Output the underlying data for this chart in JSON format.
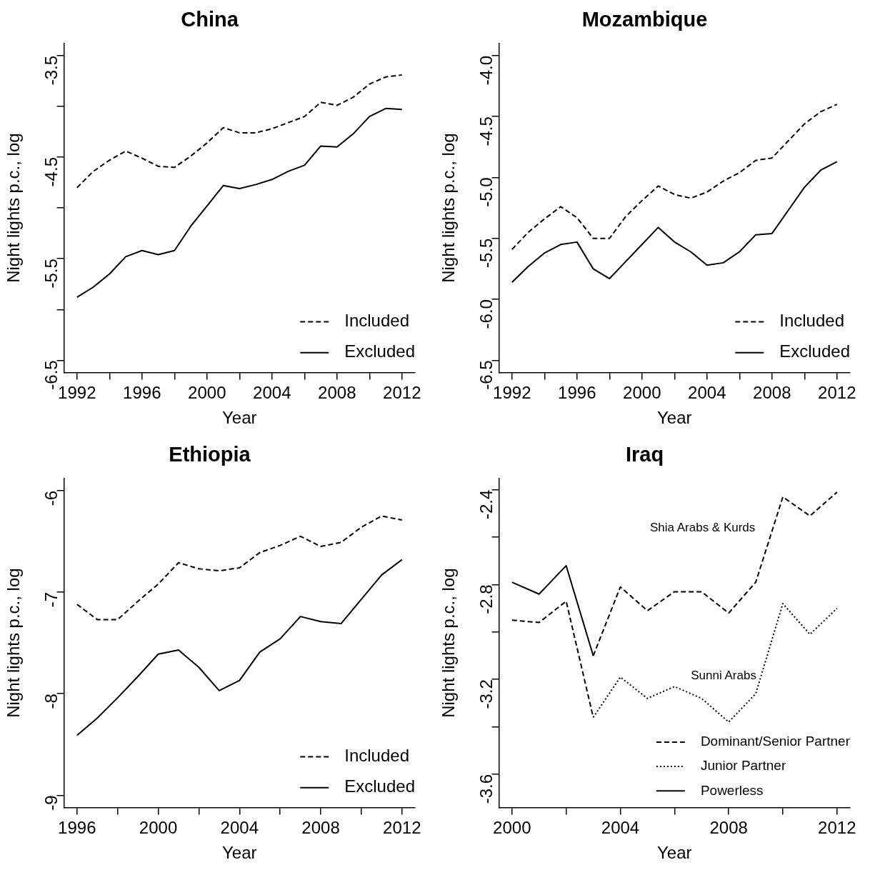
{
  "chart_data": [
    {
      "type": "line",
      "title": "China",
      "xlabel": "Year",
      "ylabel": "Night lights p.c., log",
      "grid": false,
      "legend": "bottom right",
      "x": [
        1992,
        1993,
        1994,
        1995,
        1996,
        1997,
        1998,
        1999,
        2000,
        2001,
        2002,
        2003,
        2004,
        2005,
        2006,
        2007,
        2008,
        2009,
        2010,
        2011,
        2012
      ],
      "xlim": [
        1991.2,
        2012.8
      ],
      "xticks": [
        1992,
        {
          "value": 1994,
          "label": null
        },
        1996,
        {
          "value": 1998,
          "label": null
        },
        2000,
        {
          "value": 2002,
          "label": null
        },
        2004,
        {
          "value": 2006,
          "label": null
        },
        2008,
        {
          "value": 2010,
          "label": null
        },
        2012
      ],
      "ylim": [
        -6.62,
        -3.38
      ],
      "yticks": [
        -6.5,
        {
          "value": -6,
          "label": null
        },
        -5.5,
        {
          "value": -5,
          "label": null
        },
        -4.5,
        {
          "value": -4,
          "label": null
        },
        -3.5
      ],
      "series": [
        {
          "name": "Included",
          "color": "#000000",
          "line_style": "dashed",
          "values": [
            -4.8,
            -4.64,
            -4.53,
            -4.44,
            -4.51,
            -4.59,
            -4.6,
            -4.49,
            -4.36,
            -4.21,
            -4.26,
            -4.26,
            -4.22,
            -4.16,
            -4.1,
            -3.96,
            -3.99,
            -3.91,
            -3.78,
            -3.71,
            -3.69
          ]
        },
        {
          "name": "Excluded",
          "color": "#000000",
          "line_style": "solid",
          "values": [
            -5.88,
            -5.78,
            -5.65,
            -5.48,
            -5.42,
            -5.46,
            -5.42,
            -5.18,
            -4.98,
            -4.78,
            -4.81,
            -4.77,
            -4.72,
            -4.64,
            -4.58,
            -4.39,
            -4.4,
            -4.27,
            -4.1,
            -4.02,
            -4.03
          ]
        }
      ]
    },
    {
      "type": "line",
      "title": "Mozambique",
      "xlabel": "Year",
      "ylabel": "Night lights p.c., log",
      "grid": false,
      "legend": "bottom right",
      "x": [
        1992,
        1993,
        1994,
        1995,
        1996,
        1997,
        1998,
        1999,
        2000,
        2001,
        2002,
        2003,
        2004,
        2005,
        2006,
        2007,
        2008,
        2009,
        2010,
        2011,
        2012
      ],
      "xlim": [
        1991.2,
        2012.8
      ],
      "xticks": [
        1992,
        {
          "value": 1994,
          "label": null
        },
        1996,
        {
          "value": 1998,
          "label": null
        },
        2000,
        {
          "value": 2002,
          "label": null
        },
        2004,
        {
          "value": 2006,
          "label": null
        },
        2008,
        {
          "value": 2010,
          "label": null
        },
        2012
      ],
      "ylim": [
        -6.6,
        -3.9
      ],
      "yticks": [
        -6.5,
        {
          "value": -6,
          "label": "-6.0"
        },
        -5.5,
        {
          "value": -5,
          "label": "-5.0"
        },
        -4.5,
        {
          "value": -4,
          "label": "-4.0"
        }
      ],
      "series": [
        {
          "name": "Included",
          "color": "#000000",
          "line_style": "dashed",
          "values": [
            -5.59,
            -5.45,
            -5.34,
            -5.24,
            -5.33,
            -5.5,
            -5.5,
            -5.32,
            -5.19,
            -5.07,
            -5.14,
            -5.17,
            -5.12,
            -5.03,
            -4.96,
            -4.86,
            -4.84,
            -4.7,
            -4.56,
            -4.46,
            -4.4
          ]
        },
        {
          "name": "Excluded",
          "color": "#000000",
          "line_style": "solid",
          "values": [
            -5.86,
            -5.73,
            -5.62,
            -5.55,
            -5.53,
            -5.75,
            -5.83,
            -5.69,
            -5.55,
            -5.41,
            -5.53,
            -5.61,
            -5.72,
            -5.7,
            -5.61,
            -5.47,
            -5.46,
            -5.27,
            -5.08,
            -4.94,
            -4.87
          ]
        }
      ]
    },
    {
      "type": "line",
      "title": "Ethiopia",
      "xlabel": "Year",
      "ylabel": "Night lights p.c., log",
      "grid": false,
      "legend": "bottom right",
      "x": [
        1996,
        1997,
        1998,
        1999,
        2000,
        2001,
        2002,
        2003,
        2004,
        2005,
        2006,
        2007,
        2008,
        2009,
        2010,
        2011,
        2012
      ],
      "xlim": [
        1995.36,
        2012.64
      ],
      "xticks": [
        1996,
        {
          "value": 1998,
          "label": null
        },
        2000,
        {
          "value": 2002,
          "label": null
        },
        2004,
        {
          "value": 2006,
          "label": null
        },
        2008,
        {
          "value": 2010,
          "label": null
        },
        2012
      ],
      "ylim": [
        -9.12,
        -5.88
      ],
      "yticks": [
        -9,
        -8,
        -7,
        -6
      ],
      "series": [
        {
          "name": "Included",
          "color": "#000000",
          "line_style": "dashed",
          "values": [
            -7.12,
            -7.27,
            -7.27,
            -7.09,
            -6.92,
            -6.71,
            -6.77,
            -6.79,
            -6.76,
            -6.61,
            -6.54,
            -6.45,
            -6.55,
            -6.51,
            -6.36,
            -6.25,
            -6.29
          ]
        },
        {
          "name": "Excluded",
          "color": "#000000",
          "line_style": "solid",
          "values": [
            -8.41,
            -8.24,
            -8.04,
            -7.83,
            -7.61,
            -7.57,
            -7.74,
            -7.97,
            -7.87,
            -7.59,
            -7.46,
            -7.24,
            -7.29,
            -7.31,
            -7.07,
            -6.83,
            -6.68
          ]
        }
      ]
    },
    {
      "type": "line",
      "title": "Iraq",
      "xlabel": "Year",
      "ylabel": "Night lights p.c., log",
      "grid": false,
      "legend": "bottom right",
      "xlim": [
        1999.52,
        2012.48
      ],
      "xticks": [
        2000,
        {
          "value": 2002,
          "label": null
        },
        2004,
        {
          "value": 2006,
          "label": null
        },
        2008,
        {
          "value": 2010,
          "label": null
        },
        2012
      ],
      "ylim": [
        -3.74,
        -2.352
      ],
      "yticks": [
        -3.6,
        {
          "value": -3.4,
          "label": null
        },
        -3.2,
        {
          "value": -3.0,
          "label": null
        },
        -2.8,
        {
          "value": -2.6,
          "label": null
        },
        -2.4
      ],
      "annotations": [
        "Shia Arabs & Kurds",
        "Sunni Arabs"
      ],
      "series": [
        {
          "name": "Dominant/Senior Partner",
          "color": "#000000",
          "line_style": "dashed",
          "x": [
            2000,
            2001,
            2002,
            2003
          ],
          "values": [
            -2.95,
            -2.96,
            -2.87,
            -3.36
          ]
        },
        {
          "color": "#000000",
          "line_style": "dashed",
          "x": [
            2003,
            2004,
            2005,
            2006,
            2007,
            2008,
            2009,
            2010,
            2011,
            2012
          ],
          "values": [
            -3.1,
            -2.81,
            -2.91,
            -2.83,
            -2.83,
            -2.92,
            -2.79,
            -2.43,
            -2.51,
            -2.41
          ]
        },
        {
          "name": "Junior Partner",
          "color": "#000000",
          "line_style": "dotted",
          "x": [
            2003,
            2004,
            2005,
            2006,
            2007,
            2008,
            2009,
            2010,
            2011,
            2012
          ],
          "values": [
            -3.36,
            -3.19,
            -3.28,
            -3.23,
            -3.28,
            -3.38,
            -3.26,
            -2.88,
            -3.01,
            -2.9
          ]
        },
        {
          "name": "Powerless",
          "color": "#000000",
          "line_style": "solid",
          "x": [
            2000,
            2001,
            2002,
            2003
          ],
          "values": [
            -2.79,
            -2.84,
            -2.72,
            -3.1
          ]
        }
      ]
    }
  ]
}
